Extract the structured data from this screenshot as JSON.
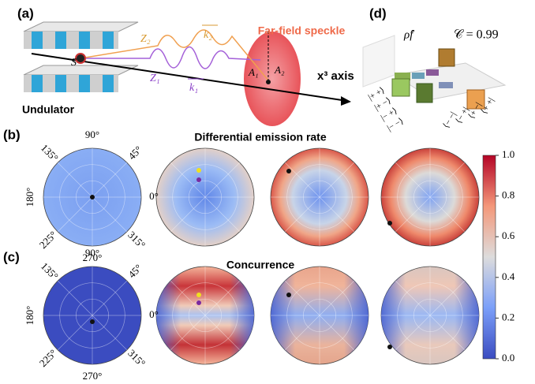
{
  "panel_labels": [
    "(a)",
    "(b)",
    "(c)",
    "(d)"
  ],
  "panel_a": {
    "speckle": "Far-field speckle",
    "axis": "x³ axis",
    "undulator": "Undulator",
    "source": "S",
    "z2": "Z₂",
    "z1": "Z₁",
    "k2": "k₂",
    "k1": "k₁",
    "a1": "A₁",
    "a2": "A₂"
  },
  "panel_d": {
    "rho": "ρ̂f",
    "concurrence": "𝒞 = 0.99",
    "basis_left": [
      "|+ +⟩",
      "|+ −⟩",
      "|− +⟩",
      "|− −⟩"
    ],
    "basis_right": [
      "⟨− −|",
      "⟨− +|",
      "⟨+ −|",
      "⟨+ +|"
    ]
  },
  "panel_b": {
    "title": "Differential emission rate",
    "polar_labels": [
      "0°",
      "45°",
      "90°",
      "135°",
      "180°",
      "225°",
      "270°",
      "315°"
    ]
  },
  "panel_c": {
    "title": "Concurrence",
    "polar_labels": [
      "0°",
      "45°",
      "90°",
      "135°",
      "180°",
      "225°",
      "270°",
      "315°"
    ]
  },
  "colorbar": {
    "lim": [
      0,
      1
    ],
    "ticks": [
      {
        "value": 0,
        "label": "0.0"
      },
      {
        "value": 0.2,
        "label": "0.2"
      },
      {
        "value": 0.4,
        "label": "0.4"
      },
      {
        "value": 0.6,
        "label": "0.6"
      },
      {
        "value": 0.8,
        "label": "0.8"
      },
      {
        "value": 1,
        "label": "1.0"
      }
    ]
  }
}
